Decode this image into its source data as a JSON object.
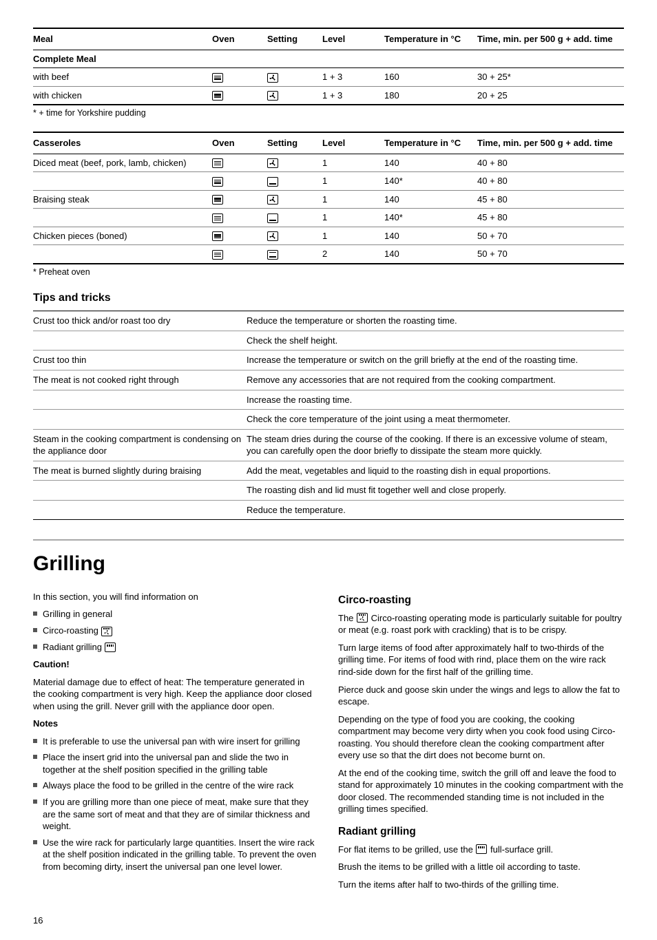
{
  "table1": {
    "headers": [
      "Meal",
      "Oven",
      "Setting",
      "Level",
      "Temperature in °C",
      "Time, min. per 500 g + add. time"
    ],
    "subhead": "Complete Meal",
    "rows": [
      {
        "meal": "with beef",
        "oven": "oven",
        "setting": "fan",
        "level": "1 + 3",
        "temp": "160",
        "time": "30 + 25*"
      },
      {
        "meal": "with chicken",
        "oven": "oven",
        "setting": "fan",
        "level": "1 + 3",
        "temp": "180",
        "time": "20 + 25"
      }
    ],
    "footnote": "* + time for Yorkshire pudding"
  },
  "table2": {
    "headers": [
      "Casseroles",
      "Oven",
      "Setting",
      "Level",
      "Temperature in °C",
      "Time, min. per 500 g + add. time"
    ],
    "rows": [
      {
        "meal": "Diced meat (beef, pork, lamb, chicken)",
        "oven": "oven",
        "setting": "fan",
        "level": "1",
        "temp": "140",
        "time": "40 + 80"
      },
      {
        "meal": "",
        "oven": "oven",
        "setting": "bottom",
        "level": "1",
        "temp": "140*",
        "time": "40 + 80"
      },
      {
        "meal": "Braising steak",
        "oven": "oven",
        "setting": "fan",
        "level": "1",
        "temp": "140",
        "time": "45 + 80"
      },
      {
        "meal": "",
        "oven": "oven",
        "setting": "bottom",
        "level": "1",
        "temp": "140*",
        "time": "45 + 80"
      },
      {
        "meal": "Chicken pieces (boned)",
        "oven": "oven",
        "setting": "fan",
        "level": "1",
        "temp": "140",
        "time": "50 + 70"
      },
      {
        "meal": "",
        "oven": "oven",
        "setting": "topbot",
        "level": "2",
        "temp": "140",
        "time": "50 + 70"
      }
    ],
    "footnote": "* Preheat oven"
  },
  "tips": {
    "heading": "Tips and tricks",
    "rows": [
      {
        "l": "Crust too thick and/or roast too dry",
        "r": [
          "Reduce the temperature or shorten the roasting time.",
          "Check the shelf height."
        ]
      },
      {
        "l": "Crust too thin",
        "r": [
          "Increase the temperature or switch on the grill briefly at the end of the roasting time."
        ]
      },
      {
        "l": "The meat is not cooked right through",
        "r": [
          "Remove any accessories that are not required from the cooking compartment.",
          "Increase the roasting time.",
          "Check the core temperature of the joint using a meat thermometer."
        ]
      },
      {
        "l": "Steam in the cooking compartment is condensing on the appliance door",
        "r": [
          "The steam dries during the course of the cooking. If there is an excessive volume of steam, you can carefully open the door briefly to dissipate the steam more quickly."
        ]
      },
      {
        "l": "The meat is burned slightly during braising",
        "r": [
          "Add the meat, vegetables and liquid to the roasting dish in equal proportions.",
          "The roasting dish and lid must fit together well and close properly.",
          "Reduce the temperature."
        ]
      }
    ]
  },
  "grilling": {
    "title": "Grilling",
    "intro": "In this section, you will find information on",
    "bullets_intro": [
      "Grilling in general",
      "Circo-roasting",
      "Radiant grilling"
    ],
    "caution_h": "Caution!",
    "caution": "Material damage due to effect of heat: The temperature generated in the cooking compartment is very high. Keep the appliance door closed when using the grill. Never grill with the appliance door open.",
    "notes_h": "Notes",
    "notes": [
      "It is preferable to use the universal pan with wire insert for grilling",
      "Place the insert grid into the universal pan and slide the two in together at the shelf position specified in the grilling table",
      "Always place the food to be grilled in the centre of the wire rack",
      "If you are grilling more than one piece of meat, make sure that they are the same sort of meat and that they are of similar thickness and weight.",
      "Use the wire rack for particularly large quantities. Insert the wire rack at the shelf position indicated in the grilling table. To prevent the oven from becoming dirty, insert the universal pan one level lower."
    ],
    "circo_h": "Circo-roasting",
    "circo": [
      "The __CIRCO__ Circo-roasting operating mode is particularly suitable for poultry or meat (e.g. roast pork with crackling) that is to be crispy.",
      "Turn large items of food after approximately half to two-thirds of the grilling time. For items of food with rind, place them on the wire rack rind-side down for the first half of the grilling time.",
      "Pierce duck and goose skin under the wings and legs to allow the fat to escape.",
      "Depending on the type of food you are cooking, the cooking compartment may become very dirty when you cook food using Circo-roasting. You should therefore clean the cooking compartment after every use so that the dirt does not become burnt on.",
      "At the end of the cooking time, switch the grill off and leave the food to stand for approximately 10 minutes in the cooking compartment with the door closed. The recommended standing time is not included in the grilling times specified."
    ],
    "radiant_h": "Radiant grilling",
    "radiant": [
      "For flat items to be grilled, use the __GRILL__ full-surface grill.",
      "Brush the items to be grilled with a little oil according to taste.",
      "Turn the items after half to two-thirds of the grilling time."
    ]
  },
  "page": "16"
}
